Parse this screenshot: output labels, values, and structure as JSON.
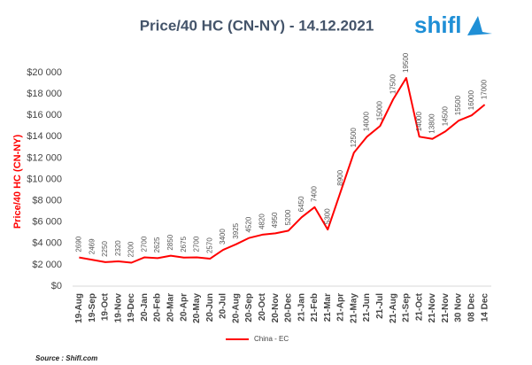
{
  "chart_data": {
    "type": "line",
    "title": "Price/40 HC (CN-NY) - 14.12.2021",
    "logo": "shifl",
    "source": "Source : Shifl.com",
    "y_label": "Price/40 HC (CN-NY)",
    "categories": [
      "19-Aug",
      "19-Sep",
      "19-Oct",
      "19-Nov",
      "19-Dec",
      "20-Jan",
      "20-Feb",
      "20-Mar",
      "20-Apr",
      "20-May",
      "20-Jun",
      "20-Jul",
      "20-Aug",
      "20-Sep",
      "20-Oct",
      "20-Nov",
      "20-Dec",
      "21-Jan",
      "21-Feb",
      "21-Mar",
      "21-Apr",
      "21-May",
      "21-Jun",
      "21-Jul",
      "21-Aug",
      "21-Sep",
      "21-Oct",
      "21-Nov",
      "21-Nov",
      "30 Nov",
      "08 Dec",
      "14 Dec"
    ],
    "series": [
      {
        "name": "China - EC",
        "color": "#ff0000",
        "values": [
          2690,
          2469,
          2250,
          2320,
          2200,
          2700,
          2625,
          2850,
          2675,
          2700,
          2570,
          3400,
          3925,
          4520,
          4820,
          4950,
          5200,
          6450,
          7400,
          5300,
          8900,
          12500,
          14000,
          15000,
          17500,
          19500,
          14000,
          13800,
          14500,
          15500,
          16000,
          17000
        ]
      }
    ],
    "ylim": [
      0,
      20000
    ],
    "yticks": [
      {
        "value": 0,
        "label": "$0"
      },
      {
        "value": 2000,
        "label": "$2 000"
      },
      {
        "value": 4000,
        "label": "$4 000"
      },
      {
        "value": 6000,
        "label": "$6 000"
      },
      {
        "value": 8000,
        "label": "$8 000"
      },
      {
        "value": 10000,
        "label": "$10 000"
      },
      {
        "value": 12000,
        "label": "$12 000"
      },
      {
        "value": 14000,
        "label": "$14 000"
      },
      {
        "value": 16000,
        "label": "$16 000"
      },
      {
        "value": 18000,
        "label": "$18 000"
      },
      {
        "value": 20000,
        "label": "$20 000"
      }
    ],
    "grid": false,
    "legend": "bottom"
  }
}
